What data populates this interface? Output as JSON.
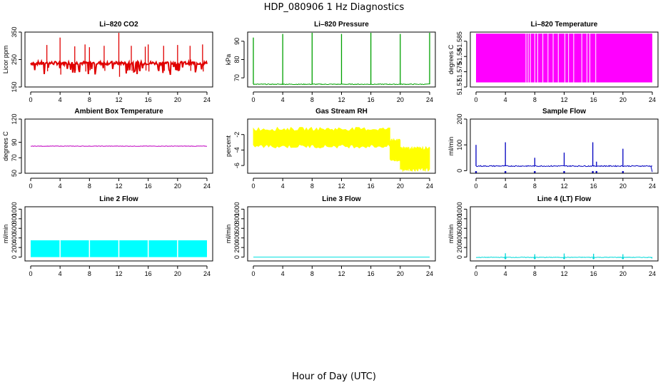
{
  "title": "HDP_080906  1 Hz Diagnostics",
  "xlabel": "Hour of Day (UTC)",
  "chart_data": [
    {
      "type": "line",
      "title": "Li–820 CO2",
      "ylabel": "Licor ppm",
      "color": "#e00000",
      "xlim": [
        0,
        24
      ],
      "ylim": [
        150,
        350
      ],
      "yticks": [
        150,
        250,
        350
      ],
      "xticks": [
        0,
        4,
        8,
        12,
        16,
        20,
        24
      ],
      "baseline": 237,
      "noise": 6,
      "fill": false,
      "mode": "co2",
      "spike_hours": [
        2.2,
        4.0,
        6.0,
        7.4,
        8.0,
        10.0,
        12.0,
        13.7,
        15.6,
        16.0,
        18.1,
        20.0,
        21.7,
        23.4
      ],
      "spike_values": [
        303,
        330,
        298,
        305,
        295,
        300,
        348,
        300,
        297,
        305,
        300,
        303,
        300,
        305
      ]
    },
    {
      "type": "line",
      "title": "Li–820 Pressure",
      "ylabel": "kPa",
      "color": "#00a000",
      "xlim": [
        0,
        24
      ],
      "ylim": [
        65,
        95
      ],
      "yticks": [
        70,
        80,
        90
      ],
      "xticks": [
        0,
        4,
        8,
        12,
        16,
        20,
        24
      ],
      "baseline": 66.5,
      "noise": 0.2,
      "fill": false,
      "mode": "pressure",
      "spike_hours": [
        0.0,
        4.0,
        8.0,
        12.0,
        16.0,
        20.0,
        24.0
      ],
      "spike_values": [
        92,
        94,
        96,
        94,
        96,
        94,
        95
      ]
    },
    {
      "type": "area",
      "title": "Li–820 Temperature",
      "ylabel": "degrees C",
      "color": "#ff00ff",
      "xlim": [
        0,
        24
      ],
      "ylim": [
        51.57,
        51.588
      ],
      "yticks": [
        51.57,
        51.575,
        51.58,
        51.585
      ],
      "xticks": [
        0,
        4,
        8,
        12,
        16,
        20,
        24
      ],
      "fill": true,
      "mode": "temp",
      "band": [
        51.5715,
        51.5875
      ],
      "gaps": [
        6.8,
        7.1,
        7.4,
        8.0,
        8.4,
        9.1,
        9.8,
        10.5,
        11.2,
        12.1,
        12.6,
        13.3,
        14.4,
        15.1,
        15.5,
        16.3
      ]
    },
    {
      "type": "line",
      "title": "Ambient Box Temperature",
      "ylabel": "degrees C",
      "color": "#c000c0",
      "xlim": [
        0,
        24
      ],
      "ylim": [
        50,
        120
      ],
      "yticks": [
        50,
        70,
        90,
        120
      ],
      "xticks": [
        0,
        4,
        8,
        12,
        16,
        20,
        24
      ],
      "baseline": 85,
      "noise": 0.3,
      "fill": false,
      "mode": "flat"
    },
    {
      "type": "area",
      "title": "Gas Stream RH",
      "ylabel": "percent",
      "color": "#ffff00",
      "xlim": [
        0,
        24
      ],
      "ylim": [
        -7,
        0
      ],
      "yticks": [
        -6,
        -4,
        -2
      ],
      "xticks": [
        0,
        4,
        8,
        12,
        16,
        20,
        24
      ],
      "fill": true,
      "mode": "rh",
      "segments": [
        {
          "x0": 0,
          "x1": 18.6,
          "lo": -3.5,
          "hi": -1.3
        },
        {
          "x0": 18.6,
          "x1": 20.0,
          "lo": -5.2,
          "hi": -2.8
        },
        {
          "x0": 20.0,
          "x1": 24.0,
          "lo": -6.5,
          "hi": -3.8
        }
      ]
    },
    {
      "type": "line",
      "title": "Sample Flow",
      "ylabel": "ml/min",
      "color": "#0000c0",
      "xlim": [
        0,
        24
      ],
      "ylim": [
        -10,
        200
      ],
      "yticks": [
        0,
        100,
        200
      ],
      "xticks": [
        0,
        4,
        8,
        12,
        16,
        20,
        24
      ],
      "baseline": 18,
      "noise": 2,
      "fill": false,
      "mode": "flow",
      "spike_hours": [
        0.0,
        4.0,
        8.0,
        12.0,
        15.9,
        16.4,
        20.0
      ],
      "spike_values": [
        100,
        110,
        50,
        70,
        110,
        35,
        85
      ],
      "drop_value": -5
    },
    {
      "type": "area",
      "title": "Line 2 Flow",
      "ylabel": "ml/min",
      "color": "#00ffff",
      "xlim": [
        0,
        24
      ],
      "ylim": [
        -80,
        1050
      ],
      "yticks": [
        0,
        200,
        400,
        600,
        800,
        1000
      ],
      "xticks": [
        0,
        4,
        8,
        12,
        16,
        20,
        24
      ],
      "fill": true,
      "mode": "blocks",
      "band": [
        0,
        350
      ],
      "gaps": [
        4.0,
        8.0,
        12.0,
        16.0,
        20.0
      ]
    },
    {
      "type": "line",
      "title": "Line 3 Flow",
      "ylabel": "ml/min",
      "color": "#00e0e0",
      "xlim": [
        0,
        24
      ],
      "ylim": [
        -80,
        1050
      ],
      "yticks": [
        0,
        200,
        400,
        600,
        800,
        1000
      ],
      "xticks": [
        0,
        4,
        8,
        12,
        16,
        20,
        24
      ],
      "baseline": 0,
      "noise": 0,
      "fill": false,
      "mode": "flat"
    },
    {
      "type": "line",
      "title": "Line 4 (LT) Flow",
      "ylabel": "ml/min",
      "color": "#00d8d8",
      "xlim": [
        0,
        24
      ],
      "ylim": [
        -80,
        1050
      ],
      "yticks": [
        0,
        200,
        400,
        600,
        800,
        1000
      ],
      "xticks": [
        0,
        4,
        8,
        12,
        16,
        20,
        24
      ],
      "baseline": -5,
      "noise": 6,
      "fill": false,
      "mode": "flow",
      "spike_hours": [
        4.0,
        8.0,
        12.0,
        16.0,
        20.0
      ],
      "spike_values": [
        80,
        60,
        75,
        70,
        60
      ],
      "drop_value": -25
    }
  ]
}
